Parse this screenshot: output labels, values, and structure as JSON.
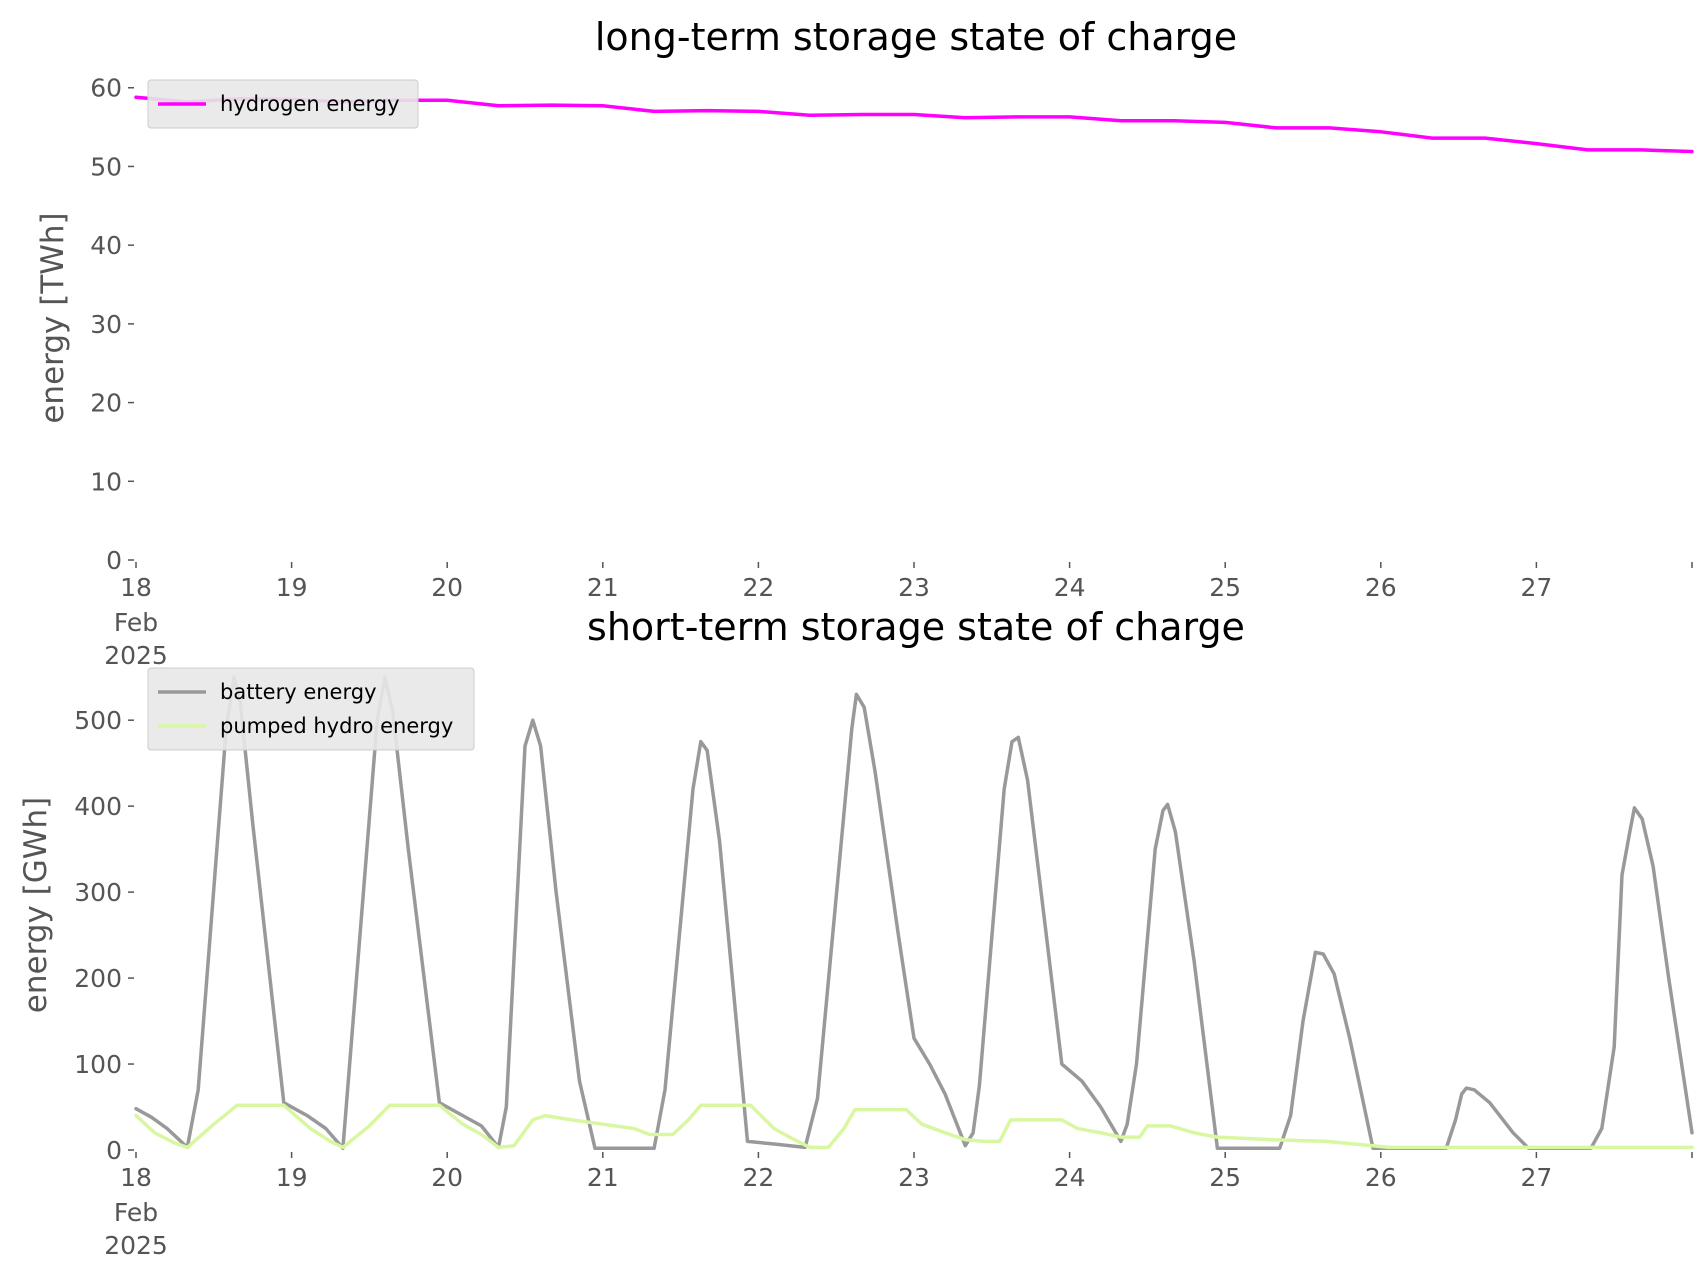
{
  "chart_data": [
    {
      "type": "line",
      "title": "long-term storage state of charge",
      "xlabel": "",
      "ylabel": "energy [TWh]",
      "x_ticks": [
        {
          "day": 0,
          "label": "18",
          "sub1": "Feb",
          "sub2": "2025"
        },
        {
          "day": 1,
          "label": "19"
        },
        {
          "day": 2,
          "label": "20"
        },
        {
          "day": 3,
          "label": "21"
        },
        {
          "day": 4,
          "label": "22"
        },
        {
          "day": 5,
          "label": "23"
        },
        {
          "day": 6,
          "label": "24"
        },
        {
          "day": 7,
          "label": "25"
        },
        {
          "day": 8,
          "label": "26"
        },
        {
          "day": 9,
          "label": "27"
        },
        {
          "day": 10,
          "label": ""
        }
      ],
      "xlim": [
        0,
        10
      ],
      "ylim": [
        0,
        62
      ],
      "y_ticks": [
        0,
        10,
        20,
        30,
        40,
        50,
        60
      ],
      "grid": false,
      "legend": "top-left",
      "series": [
        {
          "name": "hydrogen energy",
          "color": "#ff00ff",
          "points": [
            [
              0,
              58.8
            ],
            [
              0.33,
              58.2
            ],
            [
              0.67,
              58.6
            ],
            [
              1,
              58.5
            ],
            [
              1.33,
              58.2
            ],
            [
              1.67,
              58.4
            ],
            [
              2,
              58.4
            ],
            [
              2.33,
              57.7
            ],
            [
              2.67,
              57.8
            ],
            [
              3,
              57.7
            ],
            [
              3.33,
              57.0
            ],
            [
              3.67,
              57.1
            ],
            [
              4,
              57.0
            ],
            [
              4.33,
              56.5
            ],
            [
              4.67,
              56.6
            ],
            [
              5,
              56.6
            ],
            [
              5.33,
              56.2
            ],
            [
              5.67,
              56.3
            ],
            [
              6,
              56.3
            ],
            [
              6.33,
              55.8
            ],
            [
              6.67,
              55.8
            ],
            [
              7,
              55.6
            ],
            [
              7.33,
              54.9
            ],
            [
              7.67,
              54.9
            ],
            [
              8,
              54.4
            ],
            [
              8.33,
              53.6
            ],
            [
              8.67,
              53.6
            ],
            [
              9,
              52.9
            ],
            [
              9.33,
              52.1
            ],
            [
              9.67,
              52.1
            ],
            [
              10,
              51.9
            ]
          ]
        }
      ]
    },
    {
      "type": "line",
      "title": "short-term storage state of charge",
      "xlabel": "",
      "ylabel": "energy [GWh]",
      "x_ticks": [
        {
          "day": 0,
          "label": "18",
          "sub1": "Feb",
          "sub2": "2025"
        },
        {
          "day": 1,
          "label": "19"
        },
        {
          "day": 2,
          "label": "20"
        },
        {
          "day": 3,
          "label": "21"
        },
        {
          "day": 4,
          "label": "22"
        },
        {
          "day": 5,
          "label": "23"
        },
        {
          "day": 6,
          "label": "24"
        },
        {
          "day": 7,
          "label": "25"
        },
        {
          "day": 8,
          "label": "26"
        },
        {
          "day": 9,
          "label": "27"
        },
        {
          "day": 10,
          "label": ""
        }
      ],
      "xlim": [
        0,
        10
      ],
      "ylim": [
        0,
        570
      ],
      "y_ticks": [
        0,
        100,
        200,
        300,
        400,
        500
      ],
      "grid": false,
      "legend": "top-left",
      "series": [
        {
          "name": "battery energy",
          "color": "#999999",
          "points": [
            [
              0,
              48
            ],
            [
              0.1,
              38
            ],
            [
              0.2,
              25
            ],
            [
              0.33,
              3
            ],
            [
              0.4,
              70
            ],
            [
              0.58,
              490
            ],
            [
              0.63,
              550
            ],
            [
              0.67,
              520
            ],
            [
              0.75,
              380
            ],
            [
              0.95,
              55
            ],
            [
              1.1,
              40
            ],
            [
              1.22,
              25
            ],
            [
              1.33,
              2
            ],
            [
              1.55,
              500
            ],
            [
              1.6,
              550
            ],
            [
              1.65,
              510
            ],
            [
              1.75,
              350
            ],
            [
              1.95,
              55
            ],
            [
              2.1,
              40
            ],
            [
              2.22,
              28
            ],
            [
              2.33,
              3
            ],
            [
              2.38,
              50
            ],
            [
              2.5,
              470
            ],
            [
              2.55,
              500
            ],
            [
              2.6,
              470
            ],
            [
              2.7,
              300
            ],
            [
              2.85,
              80
            ],
            [
              2.95,
              2
            ],
            [
              3.33,
              2
            ],
            [
              3.4,
              70
            ],
            [
              3.58,
              420
            ],
            [
              3.63,
              475
            ],
            [
              3.67,
              465
            ],
            [
              3.75,
              360
            ],
            [
              3.93,
              10
            ],
            [
              4.1,
              7
            ],
            [
              4.3,
              3
            ],
            [
              4.38,
              60
            ],
            [
              4.6,
              490
            ],
            [
              4.63,
              530
            ],
            [
              4.68,
              515
            ],
            [
              4.75,
              440
            ],
            [
              4.9,
              250
            ],
            [
              5,
              130
            ],
            [
              5.1,
              100
            ],
            [
              5.2,
              65
            ],
            [
              5.33,
              5
            ],
            [
              5.38,
              20
            ],
            [
              5.42,
              75
            ],
            [
              5.58,
              420
            ],
            [
              5.63,
              475
            ],
            [
              5.67,
              480
            ],
            [
              5.73,
              430
            ],
            [
              5.85,
              250
            ],
            [
              5.95,
              100
            ],
            [
              6.08,
              80
            ],
            [
              6.2,
              50
            ],
            [
              6.33,
              10
            ],
            [
              6.37,
              30
            ],
            [
              6.43,
              100
            ],
            [
              6.55,
              350
            ],
            [
              6.6,
              395
            ],
            [
              6.63,
              402
            ],
            [
              6.68,
              370
            ],
            [
              6.8,
              220
            ],
            [
              6.95,
              2
            ],
            [
              7.35,
              2
            ],
            [
              7.42,
              40
            ],
            [
              7.5,
              150
            ],
            [
              7.58,
              230
            ],
            [
              7.63,
              228
            ],
            [
              7.7,
              205
            ],
            [
              7.8,
              130
            ],
            [
              7.95,
              2
            ],
            [
              8.42,
              2
            ],
            [
              8.48,
              35
            ],
            [
              8.52,
              65
            ],
            [
              8.55,
              72
            ],
            [
              8.6,
              70
            ],
            [
              8.7,
              55
            ],
            [
              8.85,
              20
            ],
            [
              8.95,
              2
            ],
            [
              9.35,
              2
            ],
            [
              9.42,
              25
            ],
            [
              9.5,
              120
            ],
            [
              9.55,
              320
            ],
            [
              9.6,
              370
            ],
            [
              9.63,
              398
            ],
            [
              9.68,
              385
            ],
            [
              9.75,
              330
            ],
            [
              9.85,
              200
            ],
            [
              10,
              20
            ]
          ]
        },
        {
          "name": "pumped hydro energy",
          "color": "#d9f7a0",
          "points": [
            [
              0,
              40
            ],
            [
              0.12,
              20
            ],
            [
              0.25,
              8
            ],
            [
              0.33,
              3
            ],
            [
              0.5,
              30
            ],
            [
              0.65,
              52
            ],
            [
              0.95,
              52
            ],
            [
              1.12,
              25
            ],
            [
              1.25,
              10
            ],
            [
              1.33,
              3
            ],
            [
              1.5,
              28
            ],
            [
              1.63,
              52
            ],
            [
              1.95,
              52
            ],
            [
              2.1,
              30
            ],
            [
              2.22,
              18
            ],
            [
              2.33,
              3
            ],
            [
              2.43,
              5
            ],
            [
              2.55,
              35
            ],
            [
              2.63,
              40
            ],
            [
              2.8,
              35
            ],
            [
              3,
              30
            ],
            [
              3.2,
              25
            ],
            [
              3.3,
              18
            ],
            [
              3.45,
              18
            ],
            [
              3.55,
              35
            ],
            [
              3.63,
              52
            ],
            [
              3.95,
              52
            ],
            [
              4.1,
              25
            ],
            [
              4.2,
              15
            ],
            [
              4.33,
              3
            ],
            [
              4.45,
              3
            ],
            [
              4.55,
              25
            ],
            [
              4.62,
              47
            ],
            [
              4.95,
              47
            ],
            [
              5.05,
              30
            ],
            [
              5.2,
              20
            ],
            [
              5.33,
              12
            ],
            [
              5.45,
              10
            ],
            [
              5.55,
              10
            ],
            [
              5.62,
              35
            ],
            [
              5.95,
              35
            ],
            [
              6.05,
              25
            ],
            [
              6.2,
              20
            ],
            [
              6.33,
              15
            ],
            [
              6.45,
              15
            ],
            [
              6.5,
              28
            ],
            [
              6.65,
              28
            ],
            [
              6.8,
              20
            ],
            [
              6.95,
              15
            ],
            [
              7.3,
              12
            ],
            [
              7.65,
              10
            ],
            [
              7.95,
              5
            ],
            [
              8.05,
              3
            ],
            [
              10,
              3
            ]
          ]
        }
      ]
    }
  ]
}
